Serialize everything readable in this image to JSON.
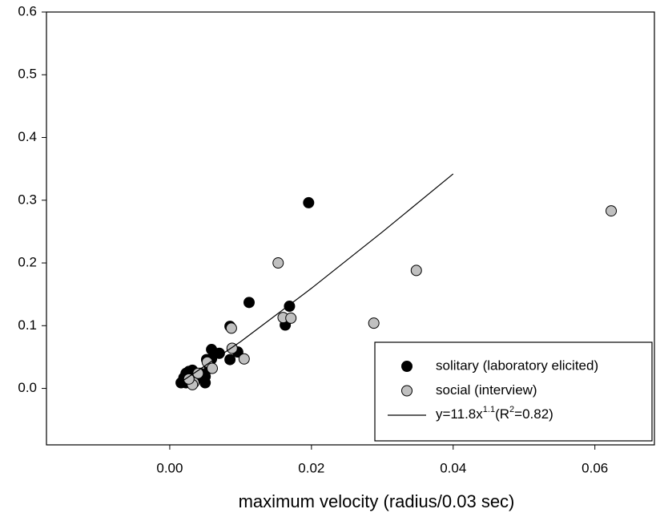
{
  "chart_data": {
    "type": "scatter",
    "x_label": "maximum velocity (radius/0.03 sec)",
    "xlim": [
      -0.0174,
      0.0684
    ],
    "ylim": [
      -0.09,
      0.6
    ],
    "xticks": [
      {
        "value": 0,
        "label": "0.00"
      },
      {
        "value": 0.02,
        "label": "0.02"
      },
      {
        "value": 0.04,
        "label": "0.04"
      },
      {
        "value": 0.06,
        "label": "0.06"
      }
    ],
    "yticks": [
      {
        "value": 0,
        "label": "0.0"
      },
      0.1,
      0.2,
      0.3,
      0.4,
      0.5,
      0.6
    ],
    "legend": "lower right",
    "series": [
      {
        "name": "solitary (laboratory elicited)",
        "type": "scatter",
        "color": "#000000",
        "x": [
          0.0196,
          0.0112,
          0.0085,
          0.0169,
          0.0163,
          0.0059,
          0.007,
          0.0096,
          0.0085,
          0.0052,
          0.0059,
          0.0027,
          0.0032,
          0.0023,
          0.0043,
          0.005,
          0.0036,
          0.0016,
          0.0023,
          0.005,
          0.002,
          0.0041,
          0.0056
        ],
        "values": [
          0.296,
          0.137,
          0.099,
          0.131,
          0.101,
          0.062,
          0.056,
          0.058,
          0.046,
          0.046,
          0.047,
          0.027,
          0.029,
          0.024,
          0.024,
          0.019,
          0.014,
          0.009,
          0.009,
          0.009,
          0.017,
          0.019,
          0.032
        ]
      },
      {
        "name": "social (interview)",
        "type": "scatter",
        "color": "#c0c0c0",
        "x": [
          0.0623,
          0.0348,
          0.0288,
          0.0153,
          0.016,
          0.0171,
          0.0087,
          0.0088,
          0.0105,
          0.0053,
          0.006,
          0.004,
          0.0034,
          0.0032,
          0.0027
        ],
        "values": [
          0.283,
          0.188,
          0.104,
          0.2,
          0.113,
          0.112,
          0.096,
          0.064,
          0.047,
          0.042,
          0.032,
          0.024,
          0.009,
          0.006,
          0.015
        ]
      },
      {
        "name": [
          "y=11.8x",
          "1.1",
          "(R",
          "2",
          "=0.82)"
        ],
        "type": "line",
        "color": "#000000",
        "x": [
          0.0012,
          0.01,
          0.02,
          0.03,
          0.04
        ],
        "values": [
          0.0072,
          0.0745,
          0.1596,
          0.2493,
          0.342
        ]
      }
    ]
  }
}
